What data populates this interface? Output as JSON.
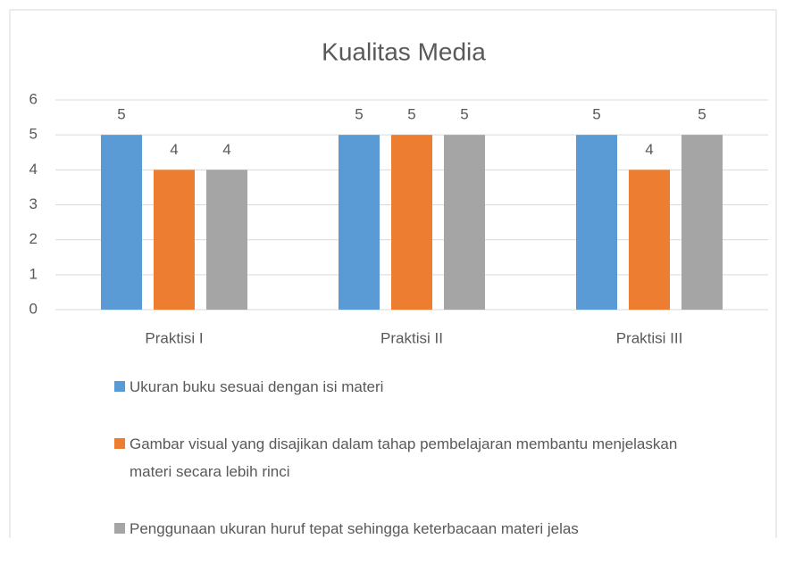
{
  "chart_data": {
    "type": "bar",
    "title": "Kualitas Media",
    "categories": [
      "Praktisi I",
      "Praktisi II",
      "Praktisi III"
    ],
    "series": [
      {
        "name": "Ukuran buku sesuai dengan isi materi",
        "color": "#5b9bd5",
        "values": [
          5,
          5,
          5
        ]
      },
      {
        "name": "Gambar visual yang disajikan dalam tahap pembelajaran membantu menjelaskan materi secara lebih rinci",
        "color": "#ed7d31",
        "values": [
          4,
          5,
          4
        ]
      },
      {
        "name": "Penggunaan ukuran huruf tepat sehingga keterbacaan materi jelas",
        "color": "#a5a5a5",
        "values": [
          4,
          5,
          5
        ]
      }
    ],
    "ylim": [
      0,
      6
    ],
    "yticks": [
      0,
      1,
      2,
      3,
      4,
      5,
      6
    ],
    "grid": true,
    "legend": "bottom"
  }
}
